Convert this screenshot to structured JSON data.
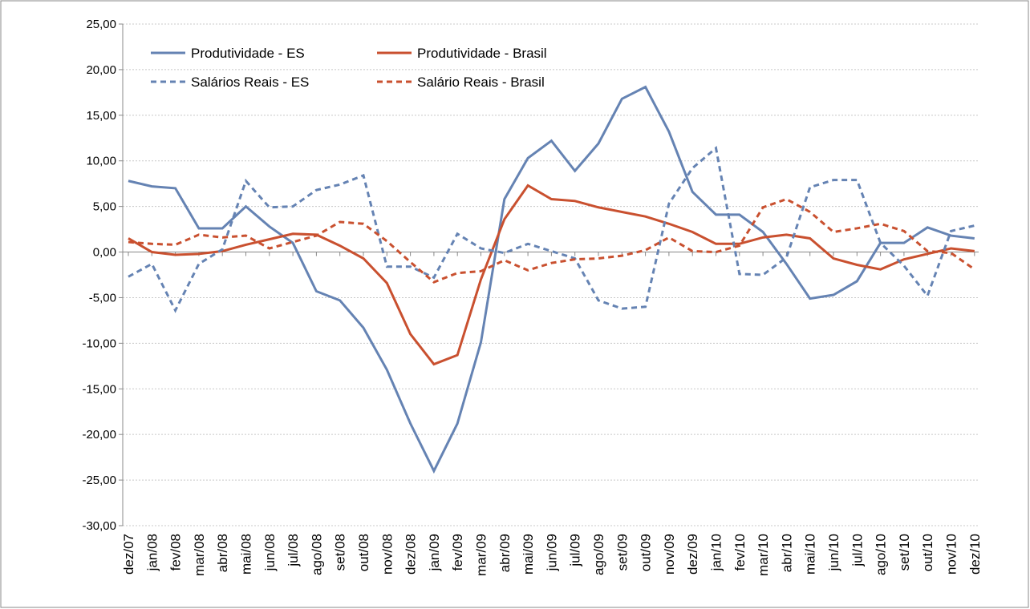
{
  "chart_data": {
    "type": "line",
    "categories": [
      "dez/07",
      "jan/08",
      "fev/08",
      "mar/08",
      "abr/08",
      "mai/08",
      "jun/08",
      "jul/08",
      "ago/08",
      "set/08",
      "out/08",
      "nov/08",
      "dez/08",
      "jan/09",
      "fev/09",
      "mar/09",
      "abr/09",
      "mai/09",
      "jun/09",
      "jul/09",
      "ago/09",
      "set/09",
      "out/09",
      "nov/09",
      "dez/09",
      "jan/10",
      "fev/10",
      "mar/10",
      "abr/10",
      "mai/10",
      "jun/10",
      "jul/10",
      "ago/10",
      "set/10",
      "out/10",
      "nov/10",
      "dez/10"
    ],
    "series": [
      {
        "name": "Produtividade - ES",
        "color": "#6583b3",
        "dashed": false,
        "values": [
          7.8,
          7.2,
          7.0,
          2.6,
          2.6,
          5.0,
          2.8,
          1.0,
          -4.3,
          -5.3,
          -8.3,
          -12.9,
          -18.8,
          -24.0,
          -18.8,
          -9.9,
          5.8,
          10.3,
          12.2,
          8.9,
          11.9,
          16.8,
          18.1,
          13.2,
          6.6,
          4.1,
          4.1,
          2.2,
          -1.3,
          -5.1,
          -4.7,
          -3.2,
          1.0,
          1.0,
          2.7,
          1.8,
          1.5
        ]
      },
      {
        "name": "Produtividade - Brasil",
        "color": "#c9502f",
        "dashed": false,
        "values": [
          1.5,
          0.0,
          -0.3,
          -0.2,
          0.1,
          0.8,
          1.4,
          2.0,
          1.9,
          0.7,
          -0.7,
          -3.4,
          -9.0,
          -12.3,
          -11.3,
          -3.0,
          3.6,
          7.3,
          5.8,
          5.6,
          4.9,
          4.4,
          3.9,
          3.1,
          2.2,
          0.9,
          0.9,
          1.6,
          1.9,
          1.5,
          -0.7,
          -1.4,
          -1.9,
          -0.8,
          -0.2,
          0.4,
          0.1
        ]
      },
      {
        "name": "Salários Reais - ES",
        "color": "#6583b3",
        "dashed": true,
        "values": [
          -2.7,
          -1.3,
          -6.4,
          -1.3,
          0.3,
          7.8,
          4.9,
          5.0,
          6.8,
          7.4,
          8.4,
          -1.6,
          -1.6,
          -2.8,
          2.0,
          0.4,
          -0.1,
          0.9,
          0.1,
          -0.7,
          -5.3,
          -6.2,
          -6.0,
          5.3,
          9.2,
          11.4,
          -2.4,
          -2.5,
          -0.6,
          7.1,
          7.9,
          7.9,
          1.0,
          -1.5,
          -4.8,
          2.3,
          2.9
        ]
      },
      {
        "name": "Salário Reais - Brasil",
        "color": "#c9502f",
        "dashed": true,
        "values": [
          1.1,
          0.9,
          0.8,
          1.9,
          1.6,
          1.8,
          0.4,
          1.1,
          1.8,
          3.3,
          3.1,
          1.2,
          -1.1,
          -3.3,
          -2.3,
          -2.1,
          -0.9,
          -2.0,
          -1.2,
          -0.8,
          -0.7,
          -0.4,
          0.2,
          1.6,
          0.1,
          0.0,
          0.7,
          4.9,
          5.8,
          4.4,
          2.2,
          2.6,
          3.1,
          2.3,
          0.1,
          -0.1,
          -1.9
        ]
      }
    ],
    "ylim": [
      -30,
      25
    ],
    "yticks": [
      {
        "value": -30,
        "label": "-30,00"
      },
      {
        "value": -25,
        "label": "-25,00"
      },
      {
        "value": -20,
        "label": "-20,00"
      },
      {
        "value": -15,
        "label": "-15,00"
      },
      {
        "value": -10,
        "label": "-10,00"
      },
      {
        "value": -5,
        "label": "-5,00"
      },
      {
        "value": 0,
        "label": "0,00"
      },
      {
        "value": 5,
        "label": "5,00"
      },
      {
        "value": 10,
        "label": "10,00"
      },
      {
        "value": 15,
        "label": "15,00"
      },
      {
        "value": 20,
        "label": "20,00"
      },
      {
        "value": 25,
        "label": "25,00"
      }
    ],
    "grid": true
  }
}
